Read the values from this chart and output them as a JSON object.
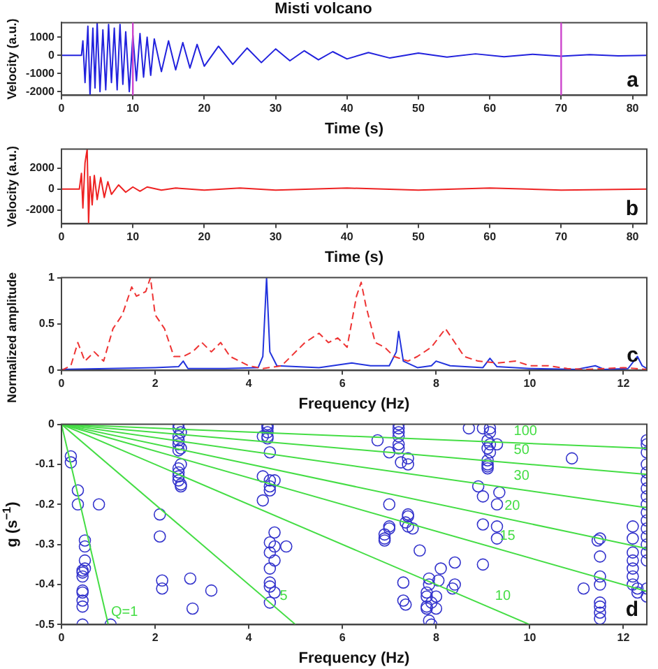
{
  "chart_data": [
    {
      "type": "line",
      "title": "Misti volcano",
      "xlabel": "Time (s)",
      "ylabel": "Velocity (a.u.)",
      "xlim": [
        0,
        82
      ],
      "xticks": [
        0,
        10,
        20,
        30,
        40,
        50,
        60,
        70,
        80
      ],
      "ylim": [
        -2200,
        1800
      ],
      "yticks": [
        -2000,
        -1000,
        0,
        1000
      ],
      "annotations": [
        "a"
      ],
      "ref_lines": [
        {
          "axis": "x",
          "value": 10,
          "color": "#cc44cc"
        },
        {
          "axis": "x",
          "value": 70,
          "color": "#cc44cc"
        }
      ],
      "series": [
        {
          "color": "#2222dd",
          "x": [
            0,
            2.8,
            3.0,
            3.3,
            3.7,
            4.0,
            4.4,
            4.7,
            5.0,
            5.4,
            5.8,
            6.2,
            6.6,
            7.0,
            7.4,
            7.8,
            8.2,
            8.6,
            9.0,
            9.5,
            10.0,
            10.5,
            11,
            11.5,
            12,
            12.5,
            13,
            14,
            15,
            16,
            17,
            18,
            19,
            20,
            22,
            24,
            26,
            28,
            30,
            32,
            34,
            36,
            38,
            40,
            43,
            46,
            50,
            54,
            58,
            62,
            66,
            70,
            74,
            78,
            82
          ],
          "values": [
            0,
            0,
            800,
            -1500,
            1600,
            -2200,
            1500,
            -1800,
            1800,
            -2000,
            1400,
            -1900,
            1700,
            -1500,
            1500,
            -1900,
            1700,
            -1600,
            1300,
            -2000,
            1100,
            -1400,
            1200,
            -1200,
            1000,
            -1100,
            900,
            -900,
            800,
            -800,
            700,
            -700,
            600,
            -600,
            500,
            -500,
            400,
            -400,
            350,
            -300,
            250,
            -250,
            200,
            -200,
            150,
            -150,
            120,
            -100,
            80,
            -80,
            60,
            -50,
            40,
            -30,
            0
          ]
        }
      ]
    },
    {
      "type": "line",
      "xlabel": "Time (s)",
      "ylabel": "Velocity (a.u.)",
      "xlim": [
        0,
        82
      ],
      "xticks": [
        0,
        10,
        20,
        30,
        40,
        50,
        60,
        70,
        80
      ],
      "ylim": [
        -3300,
        3800
      ],
      "yticks": [
        -2000,
        0,
        2000
      ],
      "annotations": [
        "b"
      ],
      "series": [
        {
          "color": "#ee2222",
          "x": [
            0,
            2.5,
            2.8,
            3.0,
            3.3,
            3.6,
            3.8,
            4.0,
            4.3,
            4.6,
            5.0,
            5.5,
            6.0,
            6.5,
            7,
            8,
            9,
            10,
            11,
            12,
            14,
            16,
            20,
            25,
            30,
            40,
            50,
            60,
            70,
            82
          ],
          "values": [
            0,
            0,
            1500,
            -1800,
            2500,
            3800,
            -3300,
            1200,
            -1500,
            1300,
            -1000,
            1100,
            -800,
            700,
            -500,
            400,
            -300,
            200,
            -200,
            200,
            -100,
            100,
            -100,
            100,
            -100,
            100,
            -100,
            100,
            -100,
            0
          ]
        }
      ]
    },
    {
      "type": "line",
      "xlabel": "Frequency (Hz)",
      "ylabel": "Normalized amplitude",
      "xlim": [
        0,
        12.5
      ],
      "xticks": [
        0,
        2,
        4,
        6,
        8,
        10,
        12
      ],
      "ylim": [
        0,
        1
      ],
      "yticks": [
        0,
        0.5,
        1
      ],
      "annotations": [
        "c"
      ],
      "series": [
        {
          "color": "#ee3333",
          "line_style": "dashed",
          "x": [
            0,
            0.2,
            0.35,
            0.5,
            0.7,
            0.9,
            1.1,
            1.3,
            1.5,
            1.6,
            1.8,
            1.9,
            2.0,
            2.2,
            2.4,
            2.6,
            2.8,
            3.0,
            3.2,
            3.4,
            3.6,
            3.8,
            4.0,
            4.3,
            4.7,
            4.9,
            5.2,
            5.5,
            5.7,
            5.9,
            6.1,
            6.3,
            6.4,
            6.5,
            6.7,
            6.9,
            7.1,
            7.4,
            7.6,
            7.9,
            8.2,
            8.4,
            8.6,
            8.9,
            9.3,
            9.7,
            10.0,
            10.4,
            10.8,
            11.2,
            11.6,
            12.0,
            12.5
          ],
          "values": [
            0,
            0.05,
            0.3,
            0.1,
            0.2,
            0.1,
            0.45,
            0.6,
            0.9,
            0.8,
            0.85,
            1,
            0.6,
            0.45,
            0.15,
            0.15,
            0.2,
            0.3,
            0.2,
            0.3,
            0.15,
            0.1,
            0.05,
            0.02,
            0.05,
            0.15,
            0.3,
            0.4,
            0.3,
            0.35,
            0.25,
            0.8,
            0.95,
            0.7,
            0.3,
            0.25,
            0.15,
            0.1,
            0.15,
            0.25,
            0.45,
            0.3,
            0.15,
            0.1,
            0.08,
            0.1,
            0.05,
            0.05,
            0.02,
            0.01,
            0.02,
            0.03,
            0.01
          ]
        },
        {
          "color": "#2233dd",
          "x": [
            0,
            1,
            2,
            2.5,
            2.6,
            2.7,
            3.5,
            4.2,
            4.3,
            4.38,
            4.45,
            4.6,
            5.5,
            6.2,
            6.6,
            7.0,
            7.15,
            7.2,
            7.3,
            7.6,
            7.9,
            8.0,
            8.3,
            9.0,
            9.15,
            9.3,
            10,
            11,
            11.4,
            11.6,
            12.1,
            12.3,
            12.4,
            12.5
          ],
          "values": [
            0.01,
            0.02,
            0.03,
            0.04,
            0.1,
            0.02,
            0.02,
            0.03,
            0.15,
            1,
            0.2,
            0.05,
            0.03,
            0.08,
            0.05,
            0.05,
            0.2,
            0.42,
            0.1,
            0.03,
            0.05,
            0.1,
            0.05,
            0.03,
            0.13,
            0.04,
            0.02,
            0.01,
            0.05,
            0.01,
            0.02,
            0.15,
            0.05,
            0.02
          ]
        }
      ]
    },
    {
      "type": "scatter",
      "xlabel": "Frequency (Hz)",
      "ylabel": "g (s$^{−1}$)",
      "xlim": [
        0,
        12.5
      ],
      "xticks": [
        0,
        2,
        4,
        6,
        8,
        10,
        12
      ],
      "ylim": [
        -0.5,
        0
      ],
      "yticks": [
        -0.5,
        -0.4,
        -0.3,
        -0.2,
        -0.1,
        0
      ],
      "annotations": [
        "d",
        {
          "text": "Q=1",
          "x": 1,
          "y": -0.5
        },
        {
          "text": "5",
          "x": 4.6,
          "y": -0.46
        },
        {
          "text": "10",
          "x": 9.2,
          "y": -0.46
        },
        {
          "text": "15",
          "x": 9.3,
          "y": -0.31
        },
        {
          "text": "20",
          "x": 9.4,
          "y": -0.235
        },
        {
          "text": "30",
          "x": 9.6,
          "y": -0.16
        },
        {
          "text": "50",
          "x": 9.6,
          "y": -0.096
        },
        {
          "text": "100",
          "x": 9.6,
          "y": -0.048
        }
      ],
      "series": [
        {
          "type": "line",
          "color": "#44dd44",
          "x": [
            0,
            1
          ],
          "values": [
            0,
            -0.5
          ]
        },
        {
          "type": "line",
          "color": "#44dd44",
          "x": [
            0,
            5
          ],
          "values": [
            0,
            -0.5
          ]
        },
        {
          "type": "line",
          "color": "#44dd44",
          "x": [
            0,
            10
          ],
          "values": [
            0,
            -0.5
          ]
        },
        {
          "type": "line",
          "color": "#44dd44",
          "x": [
            0,
            12.5
          ],
          "values": [
            0,
            -0.417
          ]
        },
        {
          "type": "line",
          "color": "#44dd44",
          "x": [
            0,
            12.5
          ],
          "values": [
            0,
            -0.31
          ]
        },
        {
          "type": "line",
          "color": "#44dd44",
          "x": [
            0,
            12.5
          ],
          "values": [
            0,
            -0.208
          ]
        },
        {
          "type": "line",
          "color": "#44dd44",
          "x": [
            0,
            12.5
          ],
          "values": [
            0,
            -0.125
          ]
        },
        {
          "type": "line",
          "color": "#44dd44",
          "x": [
            0,
            12.5
          ],
          "values": [
            0,
            -0.06
          ]
        },
        {
          "color": "#3333cc",
          "marker": "circle",
          "x": [
            0.2,
            0.2,
            0.35,
            0.35,
            0.45,
            0.45,
            0.45,
            0.45,
            0.45,
            0.45,
            0.45,
            0.45,
            0.5,
            0.5,
            0.5,
            0.5,
            0.8,
            1.05,
            2.1,
            2.1,
            2.15,
            2.15,
            2.75,
            2.8,
            3.2,
            2.5,
            2.5,
            2.5,
            2.5,
            2.5,
            2.5,
            2.5,
            2.5,
            2.5,
            2.5,
            2.55,
            2.55,
            2.55,
            2.55,
            2.55,
            4.4,
            4.4,
            4.4,
            4.4,
            4.4,
            4.4,
            4.45,
            4.3,
            4.3,
            4.3,
            4.45,
            4.45,
            4.45,
            4.55,
            4.45,
            4.45,
            4.45,
            4.45,
            4.45,
            4.45,
            4.55,
            4.55,
            4.55,
            4.55,
            4.8,
            6.75,
            6.9,
            6.9,
            6.9,
            7.0,
            7.0,
            7.0,
            7.0,
            7.2,
            7.2,
            7.2,
            7.2,
            7.2,
            7.2,
            7.25,
            7.3,
            7.3,
            7.35,
            7.35,
            7.4,
            7.4,
            7.4,
            7.4,
            7.4,
            7.5,
            7.65,
            7.8,
            7.8,
            7.8,
            7.8,
            7.85,
            7.85,
            7.85,
            7.9,
            7.9,
            8.0,
            8.0,
            8.05,
            8.1,
            8.35,
            8.4,
            8.4,
            8.7,
            8.9,
            9.0,
            9.0,
            9.0,
            9.0,
            9.1,
            9.1,
            9.1,
            9.1,
            9.1,
            9.1,
            9.15,
            9.15,
            9.15,
            9.15,
            9.3,
            9.3,
            9.3,
            9.3,
            9.35,
            10.9,
            11.15,
            11.45,
            11.5,
            11.5,
            11.5,
            11.5,
            11.5,
            11.5,
            11.5,
            11.5,
            12.2,
            12.2,
            12.2,
            12.2,
            12.2,
            12.2,
            12.2,
            12.3,
            12.3,
            12.5,
            12.5,
            12.5,
            12.5,
            12.5,
            12.5,
            12.5,
            12.5,
            12.5,
            12.5,
            12.5,
            12.5,
            12.5,
            12.5,
            12.5,
            12.5,
            12.5,
            12.5
          ],
          "values": [
            -0.08,
            -0.095,
            -0.165,
            -0.2,
            -0.365,
            -0.37,
            -0.38,
            -0.415,
            -0.42,
            -0.44,
            -0.455,
            -0.5,
            -0.29,
            -0.305,
            -0.34,
            -0.36,
            -0.2,
            -0.5,
            -0.225,
            -0.28,
            -0.39,
            -0.41,
            -0.385,
            -0.46,
            -0.415,
            0,
            -0.01,
            -0.03,
            -0.04,
            -0.05,
            -0.065,
            -0.11,
            -0.12,
            -0.13,
            -0.14,
            -0.02,
            -0.06,
            -0.1,
            -0.15,
            -0.155,
            0,
            -0.005,
            -0.01,
            -0.02,
            -0.03,
            -0.035,
            -0.07,
            -0.03,
            -0.13,
            -0.19,
            -0.14,
            -0.155,
            -0.165,
            -0.14,
            -0.295,
            -0.32,
            -0.36,
            -0.395,
            -0.405,
            -0.445,
            -0.27,
            -0.305,
            -0.34,
            -0.42,
            -0.305,
            -0.04,
            -0.275,
            -0.285,
            -0.29,
            -0.07,
            -0.2,
            -0.255,
            -0.26,
            0,
            -0.01,
            -0.02,
            -0.03,
            -0.05,
            -0.06,
            -0.095,
            -0.395,
            -0.44,
            -0.245,
            -0.45,
            -0.085,
            -0.1,
            -0.225,
            -0.23,
            -0.255,
            -0.26,
            -0.315,
            -0.42,
            -0.43,
            -0.455,
            -0.46,
            -0.385,
            -0.4,
            -0.49,
            -0.445,
            -0.5,
            -0.43,
            -0.46,
            -0.39,
            -0.36,
            -0.41,
            -0.345,
            -0.4,
            -0.01,
            -0.155,
            -0.01,
            -0.18,
            -0.25,
            -0.35,
            -0.04,
            -0.06,
            -0.09,
            -0.1,
            -0.105,
            -0.11,
            -0.01,
            -0.02,
            -0.05,
            -0.07,
            -0.05,
            -0.2,
            -0.255,
            -0.285,
            -0.17,
            -0.085,
            -0.41,
            -0.29,
            -0.285,
            -0.33,
            -0.38,
            -0.4,
            -0.445,
            -0.455,
            -0.47,
            -0.485,
            -0.255,
            -0.285,
            -0.32,
            -0.34,
            -0.36,
            -0.38,
            -0.4,
            -0.41,
            -0.42,
            -0.04,
            -0.05,
            -0.07,
            -0.1,
            -0.12,
            -0.14,
            -0.16,
            -0.18,
            -0.2,
            -0.22,
            -0.24,
            -0.26,
            -0.28,
            -0.3,
            -0.32,
            -0.34,
            -0.41,
            -0.43
          ]
        }
      ]
    }
  ]
}
